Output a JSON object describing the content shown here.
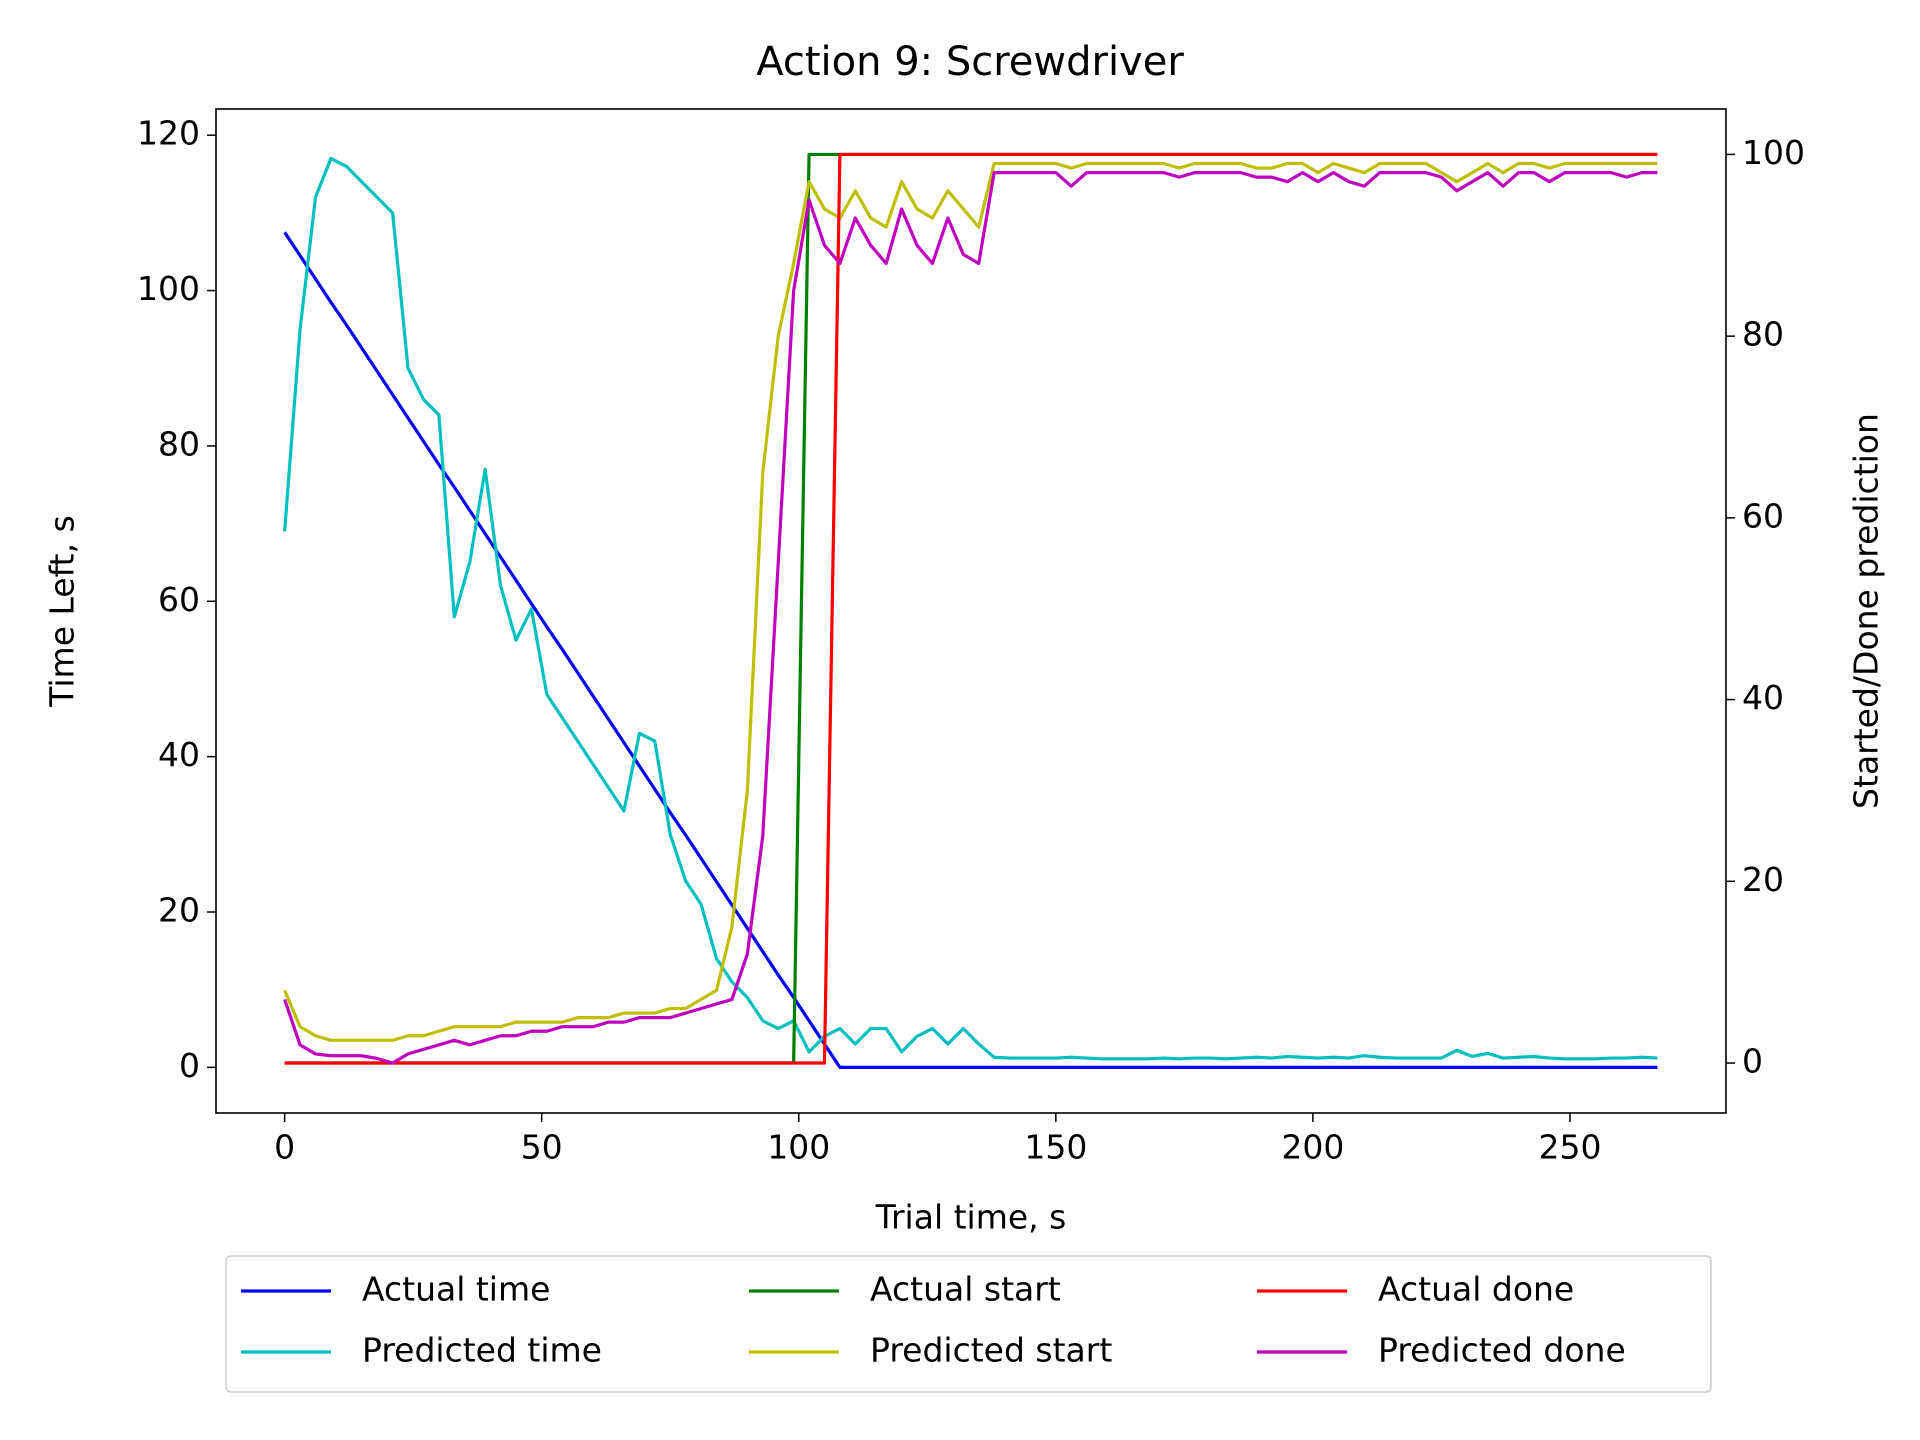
{
  "chart_data": {
    "type": "line",
    "title": "Action 9: Screwdriver",
    "xlabel": "Trial time, s",
    "ylabel": "Time Left, s",
    "y2label": "Started/Done prediction",
    "xlim": [
      -13.35,
      280.35
    ],
    "xticks": [
      0,
      50,
      100,
      150,
      200,
      250
    ],
    "ylim": [
      -5.875,
      123.375
    ],
    "yticks": [
      0,
      20,
      40,
      60,
      80,
      100,
      120
    ],
    "y2lim": [
      -5.5,
      105
    ],
    "y2ticks": [
      0,
      20,
      40,
      60,
      80,
      100
    ],
    "legend": "below",
    "x": [
      0,
      3,
      6,
      9,
      12,
      15,
      18,
      21,
      24,
      27,
      30,
      33,
      36,
      39,
      42,
      45,
      48,
      51,
      54,
      57,
      60,
      63,
      66,
      69,
      72,
      75,
      78,
      81,
      84,
      87,
      90,
      93,
      96,
      99,
      102,
      105,
      108,
      111,
      114,
      117,
      120,
      123,
      126,
      129,
      132,
      135,
      138,
      141,
      144,
      147,
      150,
      153,
      156,
      159,
      162,
      165,
      168,
      171,
      174,
      177,
      180,
      183,
      186,
      189,
      192,
      195,
      198,
      201,
      204,
      207,
      210,
      213,
      216,
      219,
      222,
      225,
      228,
      231,
      234,
      237,
      240,
      243,
      246,
      249,
      252,
      255,
      258,
      261,
      264,
      267
    ],
    "series": [
      {
        "name": "Actual time",
        "color": "#0000ff",
        "axis": "y",
        "values": [
          107.5,
          104.5,
          101.5,
          98.5,
          95.6,
          92.6,
          89.6,
          86.6,
          83.6,
          80.6,
          77.6,
          74.7,
          71.7,
          68.7,
          65.7,
          62.7,
          59.7,
          56.7,
          53.8,
          50.8,
          47.8,
          44.8,
          41.8,
          38.8,
          35.8,
          32.8,
          29.9,
          26.9,
          23.9,
          20.9,
          17.9,
          14.9,
          11.9,
          9.0,
          6.0,
          3.0,
          0,
          0,
          0,
          0,
          0,
          0,
          0,
          0,
          0,
          0,
          0,
          0,
          0,
          0,
          0,
          0,
          0,
          0,
          0,
          0,
          0,
          0,
          0,
          0,
          0,
          0,
          0,
          0,
          0,
          0,
          0,
          0,
          0,
          0,
          0,
          0,
          0,
          0,
          0,
          0,
          0,
          0,
          0,
          0,
          0,
          0,
          0,
          0,
          0,
          0,
          0,
          0,
          0,
          0
        ]
      },
      {
        "name": "Predicted time",
        "color": "#00bfbf",
        "axis": "y",
        "values": [
          69,
          95,
          112,
          117,
          116,
          114,
          112,
          110,
          90,
          86,
          84,
          58,
          65,
          77,
          62,
          55,
          59,
          48,
          45,
          42,
          39,
          36,
          33,
          43,
          42,
          30,
          24,
          21,
          14,
          11,
          9,
          6,
          5,
          6,
          2,
          4,
          5,
          3,
          5,
          5,
          2,
          4,
          5,
          3,
          5,
          3,
          1.3,
          1.2,
          1.2,
          1.2,
          1.2,
          1.3,
          1.2,
          1.1,
          1.1,
          1.1,
          1.1,
          1.2,
          1.1,
          1.2,
          1.2,
          1.1,
          1.2,
          1.3,
          1.2,
          1.4,
          1.3,
          1.2,
          1.3,
          1.2,
          1.5,
          1.3,
          1.2,
          1.2,
          1.2,
          1.2,
          2.2,
          1.4,
          1.8,
          1.2,
          1.3,
          1.4,
          1.2,
          1.1,
          1.1,
          1.1,
          1.2,
          1.2,
          1.3,
          1.2
        ]
      },
      {
        "name": "Actual start",
        "color": "#008000",
        "axis": "y2",
        "values": [
          0,
          0,
          0,
          0,
          0,
          0,
          0,
          0,
          0,
          0,
          0,
          0,
          0,
          0,
          0,
          0,
          0,
          0,
          0,
          0,
          0,
          0,
          0,
          0,
          0,
          0,
          0,
          0,
          0,
          0,
          0,
          0,
          0,
          0,
          100,
          100,
          100,
          100,
          100,
          100,
          100,
          100,
          100,
          100,
          100,
          100,
          100,
          100,
          100,
          100,
          100,
          100,
          100,
          100,
          100,
          100,
          100,
          100,
          100,
          100,
          100,
          100,
          100,
          100,
          100,
          100,
          100,
          100,
          100,
          100,
          100,
          100,
          100,
          100,
          100,
          100,
          100,
          100,
          100,
          100,
          100,
          100,
          100,
          100,
          100,
          100,
          100,
          100,
          100,
          100
        ]
      },
      {
        "name": "Predicted start",
        "color": "#bfbf00",
        "axis": "y2",
        "values": [
          8,
          4,
          3,
          2.5,
          2.5,
          2.5,
          2.5,
          2.5,
          3,
          3,
          3.5,
          4,
          4,
          4,
          4,
          4.5,
          4.5,
          4.5,
          4.5,
          5,
          5,
          5,
          5.5,
          5.5,
          5.5,
          6,
          6,
          7,
          8,
          15,
          30,
          65,
          80,
          88,
          97,
          94,
          93,
          96,
          93,
          92,
          97,
          94,
          93,
          96,
          94,
          92,
          99,
          99,
          99,
          99,
          99,
          98.5,
          99,
          99,
          99,
          99,
          99,
          99,
          98.5,
          99,
          99,
          99,
          99,
          98.5,
          98.5,
          99,
          99,
          98,
          99,
          98.5,
          98,
          99,
          99,
          99,
          99,
          98,
          97,
          98,
          99,
          98,
          99,
          99,
          98.5,
          99,
          99,
          99,
          99,
          99,
          99,
          99
        ]
      },
      {
        "name": "Actual done",
        "color": "#ff0000",
        "axis": "y2",
        "values": [
          0,
          0,
          0,
          0,
          0,
          0,
          0,
          0,
          0,
          0,
          0,
          0,
          0,
          0,
          0,
          0,
          0,
          0,
          0,
          0,
          0,
          0,
          0,
          0,
          0,
          0,
          0,
          0,
          0,
          0,
          0,
          0,
          0,
          0,
          0,
          0,
          100,
          100,
          100,
          100,
          100,
          100,
          100,
          100,
          100,
          100,
          100,
          100,
          100,
          100,
          100,
          100,
          100,
          100,
          100,
          100,
          100,
          100,
          100,
          100,
          100,
          100,
          100,
          100,
          100,
          100,
          100,
          100,
          100,
          100,
          100,
          100,
          100,
          100,
          100,
          100,
          100,
          100,
          100,
          100,
          100,
          100,
          100,
          100,
          100,
          100,
          100,
          100,
          100,
          100
        ]
      },
      {
        "name": "Predicted done",
        "color": "#bf00bf",
        "axis": "y2",
        "values": [
          7,
          2,
          1,
          0.8,
          0.8,
          0.8,
          0.5,
          0,
          1,
          1.5,
          2,
          2.5,
          2,
          2.5,
          3,
          3,
          3.5,
          3.5,
          4,
          4,
          4,
          4.5,
          4.5,
          5,
          5,
          5,
          5.5,
          6,
          6.5,
          7,
          12,
          25,
          55,
          85,
          95,
          90,
          88,
          93,
          90,
          88,
          94,
          90,
          88,
          93,
          89,
          88,
          98,
          98,
          98,
          98,
          98,
          96.5,
          98,
          98,
          98,
          98,
          98,
          98,
          97.5,
          98,
          98,
          98,
          98,
          97.5,
          97.5,
          97,
          98,
          97,
          98,
          97,
          96.5,
          98,
          98,
          98,
          98,
          97.5,
          96,
          97,
          98,
          96.5,
          98,
          98,
          97,
          98,
          98,
          98,
          98,
          97.5,
          98,
          98
        ]
      }
    ]
  }
}
